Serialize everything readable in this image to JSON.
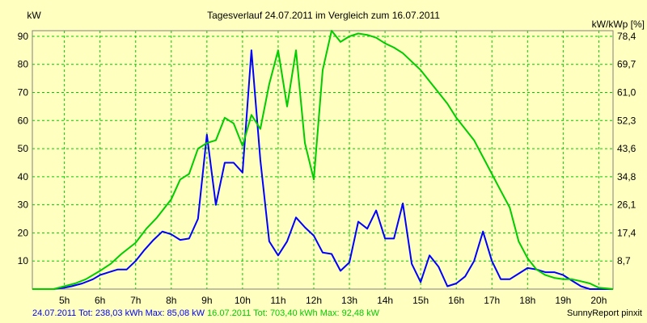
{
  "chart_data": {
    "type": "line",
    "title": "Tagesverlauf 24.07.2011 im Vergleich zum 16.07.2011",
    "ylabel_left": "kW",
    "ylabel_right": "kW/kWp [%]",
    "xlim": [
      4.1,
      20.4
    ],
    "ylim": [
      0,
      92
    ],
    "yticks_left": [
      10,
      20,
      30,
      40,
      50,
      60,
      70,
      80,
      90
    ],
    "yticks_right": [
      {
        "value": 10,
        "label": "8,7"
      },
      {
        "value": 20,
        "label": "17,4"
      },
      {
        "value": 30,
        "label": "26,1"
      },
      {
        "value": 40,
        "label": "34,8"
      },
      {
        "value": 50,
        "label": "43,6"
      },
      {
        "value": 60,
        "label": "52,3"
      },
      {
        "value": 70,
        "label": "61,0"
      },
      {
        "value": 80,
        "label": "69,7"
      },
      {
        "value": 90,
        "label": "78,4"
      }
    ],
    "xticks": [
      {
        "value": 5,
        "label": "5h"
      },
      {
        "value": 6,
        "label": "6h"
      },
      {
        "value": 7,
        "label": "7h"
      },
      {
        "value": 8,
        "label": "8h"
      },
      {
        "value": 9,
        "label": "9h"
      },
      {
        "value": 10,
        "label": "10h"
      },
      {
        "value": 11,
        "label": "11h"
      },
      {
        "value": 12,
        "label": "12h"
      },
      {
        "value": 13,
        "label": "13h"
      },
      {
        "value": 14,
        "label": "14h"
      },
      {
        "value": 15,
        "label": "15h"
      },
      {
        "value": 16,
        "label": "16h"
      },
      {
        "value": 17,
        "label": "17h"
      },
      {
        "value": 18,
        "label": "18h"
      },
      {
        "value": 19,
        "label": "19h"
      },
      {
        "value": 20,
        "label": "20h"
      }
    ],
    "grid": true,
    "series": [
      {
        "color": "#0000ff",
        "points": [
          [
            4.1,
            0
          ],
          [
            4.7,
            0
          ],
          [
            5.0,
            0.5
          ],
          [
            5.2,
            1
          ],
          [
            5.5,
            2
          ],
          [
            5.8,
            3.5
          ],
          [
            6.0,
            5
          ],
          [
            6.25,
            6
          ],
          [
            6.5,
            7
          ],
          [
            6.75,
            7
          ],
          [
            7.0,
            10
          ],
          [
            7.25,
            14
          ],
          [
            7.5,
            17.5
          ],
          [
            7.75,
            20.5
          ],
          [
            8.0,
            19.5
          ],
          [
            8.25,
            17.5
          ],
          [
            8.5,
            18
          ],
          [
            8.75,
            25
          ],
          [
            9.0,
            55
          ],
          [
            9.25,
            30
          ],
          [
            9.5,
            45
          ],
          [
            9.75,
            45
          ],
          [
            10.0,
            41.5
          ],
          [
            10.25,
            85
          ],
          [
            10.5,
            46
          ],
          [
            10.75,
            17
          ],
          [
            11.0,
            12
          ],
          [
            11.25,
            17
          ],
          [
            11.5,
            25.5
          ],
          [
            11.75,
            22
          ],
          [
            12.0,
            19
          ],
          [
            12.25,
            13
          ],
          [
            12.5,
            12.5
          ],
          [
            12.75,
            6.5
          ],
          [
            13.0,
            9.5
          ],
          [
            13.25,
            24
          ],
          [
            13.5,
            21.5
          ],
          [
            13.75,
            28
          ],
          [
            14.0,
            18
          ],
          [
            14.25,
            18
          ],
          [
            14.5,
            30.5
          ],
          [
            14.75,
            9
          ],
          [
            15.0,
            2.5
          ],
          [
            15.25,
            12
          ],
          [
            15.5,
            8
          ],
          [
            15.75,
            1
          ],
          [
            16.0,
            2
          ],
          [
            16.25,
            4.5
          ],
          [
            16.5,
            10
          ],
          [
            16.75,
            20.5
          ],
          [
            17.0,
            10
          ],
          [
            17.25,
            3.5
          ],
          [
            17.5,
            3.5
          ],
          [
            17.75,
            5.5
          ],
          [
            18.0,
            7.5
          ],
          [
            18.25,
            7
          ],
          [
            18.5,
            6
          ],
          [
            18.75,
            6
          ],
          [
            19.0,
            5
          ],
          [
            19.25,
            3
          ],
          [
            19.5,
            1
          ],
          [
            19.75,
            0
          ],
          [
            20.4,
            0
          ]
        ]
      },
      {
        "color": "#00cc00",
        "points": [
          [
            4.1,
            0
          ],
          [
            4.7,
            0
          ],
          [
            5.0,
            1
          ],
          [
            5.3,
            2
          ],
          [
            5.6,
            3.5
          ],
          [
            6.0,
            6.5
          ],
          [
            6.3,
            9
          ],
          [
            6.6,
            12.5
          ],
          [
            7.0,
            16.5
          ],
          [
            7.3,
            21.5
          ],
          [
            7.6,
            25.5
          ],
          [
            8.0,
            32
          ],
          [
            8.25,
            39
          ],
          [
            8.5,
            41
          ],
          [
            8.75,
            50
          ],
          [
            9.0,
            52
          ],
          [
            9.25,
            53
          ],
          [
            9.5,
            61
          ],
          [
            9.75,
            59
          ],
          [
            10.0,
            51
          ],
          [
            10.25,
            62
          ],
          [
            10.5,
            57
          ],
          [
            10.75,
            73
          ],
          [
            11.0,
            85
          ],
          [
            11.25,
            65
          ],
          [
            11.5,
            85
          ],
          [
            11.75,
            52
          ],
          [
            12.0,
            39
          ],
          [
            12.25,
            78
          ],
          [
            12.5,
            92
          ],
          [
            12.75,
            88
          ],
          [
            13.0,
            90
          ],
          [
            13.25,
            91
          ],
          [
            13.5,
            90.5
          ],
          [
            13.75,
            89.5
          ],
          [
            14.0,
            87.5
          ],
          [
            14.25,
            86
          ],
          [
            14.5,
            84
          ],
          [
            14.75,
            81
          ],
          [
            15.0,
            78
          ],
          [
            15.25,
            74
          ],
          [
            15.5,
            70
          ],
          [
            15.75,
            66
          ],
          [
            16.0,
            61
          ],
          [
            16.25,
            57
          ],
          [
            16.5,
            53
          ],
          [
            16.75,
            47
          ],
          [
            17.0,
            41
          ],
          [
            17.25,
            35
          ],
          [
            17.5,
            29
          ],
          [
            17.75,
            17
          ],
          [
            18.0,
            11
          ],
          [
            18.25,
            7
          ],
          [
            18.5,
            5
          ],
          [
            18.75,
            4
          ],
          [
            19.0,
            3.5
          ],
          [
            19.25,
            3.5
          ],
          [
            19.5,
            2.8
          ],
          [
            19.75,
            2
          ],
          [
            20.0,
            0.5
          ],
          [
            20.4,
            0
          ]
        ]
      }
    ]
  },
  "footer": {
    "series1_summary": "24.07.2011 Tot: 238,03 kWh Max: 85,08 kW",
    "series2_summary": "16.07.2011 Tot: 703,40 kWh Max: 92,48 kW",
    "brand": "SunnyReport pinxit"
  }
}
